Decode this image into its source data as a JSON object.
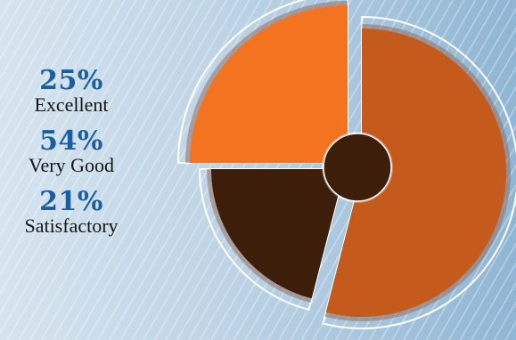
{
  "chart_data": {
    "type": "pie",
    "categories": [
      "Excellent",
      "Very Good",
      "Satisfactory"
    ],
    "values": [
      25,
      54,
      21
    ],
    "display": [
      "25%",
      "54%",
      "21%"
    ],
    "colors": [
      "#f37321",
      "#c45b1c",
      "#3d1e0a"
    ],
    "hub_color": "#3d1e0a",
    "title": "",
    "legend_placement": "left"
  }
}
